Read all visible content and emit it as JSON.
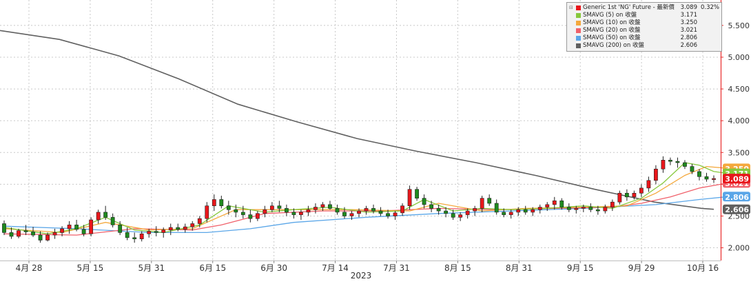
{
  "chart_data": {
    "type": "candlestick",
    "x_tick_labels": [
      "4月 28",
      "5月 15",
      "5月 31",
      "6月 15",
      "6月 30",
      "7月 14",
      "7月 31",
      "8月 15",
      "8月 31",
      "9月 15",
      "9月 29",
      "10月 16"
    ],
    "x_axis_year": "2023",
    "y_ticks": [
      "2.000",
      "2.500",
      "3.000",
      "3.500",
      "4.000",
      "4.500",
      "5.000",
      "5.500"
    ],
    "ylim": [
      1.8,
      5.9
    ],
    "grid": true,
    "legend_position": "top-right",
    "legend": [
      {
        "label": "Generic 1st 'NG' Future - 最新價",
        "value": "3.089",
        "change": "0.32%",
        "color": "#e8161b"
      },
      {
        "label": "SMAVG (5)  on 收盤",
        "value": "3.171",
        "color": "#86c83c"
      },
      {
        "label": "SMAVG (10)  on 收盤",
        "value": "3.250",
        "color": "#f4a83c"
      },
      {
        "label": "SMAVG (20)  on 收盤",
        "value": "3.021",
        "color": "#f0606a"
      },
      {
        "label": "SMAVG (50)  on 收盤",
        "value": "2.806",
        "color": "#5aa6e8"
      },
      {
        "label": "SMAVG (200)  on 收盤",
        "value": "2.606",
        "color": "#606060"
      }
    ],
    "last_value_tags": [
      {
        "text": "3.250",
        "value": 3.25,
        "color": "#f4a83c"
      },
      {
        "text": "3.171",
        "value": 3.171,
        "color": "#86c83c"
      },
      {
        "text": "3.021",
        "value": 3.021,
        "color": "#f0606a"
      },
      {
        "text": "3.089",
        "value": 3.089,
        "color": "#e8161b"
      },
      {
        "text": "2.806",
        "value": 2.806,
        "color": "#5aa6e8"
      },
      {
        "text": "2.606",
        "value": 2.606,
        "color": "#606060"
      }
    ],
    "series": [
      {
        "name": "Generic 1st 'NG' Future",
        "type": "ohlc",
        "color_up": "#e8161b",
        "color_down": "#1e8a1e",
        "values": [
          [
            2.38,
            2.43,
            2.2,
            2.24
          ],
          [
            2.24,
            2.32,
            2.14,
            2.18
          ],
          [
            2.18,
            2.3,
            2.15,
            2.27
          ],
          [
            2.27,
            2.36,
            2.2,
            2.25
          ],
          [
            2.25,
            2.33,
            2.17,
            2.2
          ],
          [
            2.2,
            2.26,
            2.08,
            2.12
          ],
          [
            2.12,
            2.24,
            2.1,
            2.2
          ],
          [
            2.2,
            2.3,
            2.14,
            2.24
          ],
          [
            2.24,
            2.34,
            2.18,
            2.3
          ],
          [
            2.3,
            2.42,
            2.22,
            2.36
          ],
          [
            2.36,
            2.44,
            2.26,
            2.29
          ],
          [
            2.29,
            2.36,
            2.18,
            2.22
          ],
          [
            2.22,
            2.48,
            2.18,
            2.44
          ],
          [
            2.44,
            2.6,
            2.38,
            2.56
          ],
          [
            2.56,
            2.66,
            2.44,
            2.48
          ],
          [
            2.48,
            2.54,
            2.32,
            2.36
          ],
          [
            2.36,
            2.42,
            2.2,
            2.24
          ],
          [
            2.24,
            2.32,
            2.12,
            2.16
          ],
          [
            2.16,
            2.24,
            2.08,
            2.14
          ],
          [
            2.14,
            2.26,
            2.1,
            2.22
          ],
          [
            2.22,
            2.3,
            2.16,
            2.26
          ],
          [
            2.26,
            2.34,
            2.18,
            2.24
          ],
          [
            2.24,
            2.32,
            2.16,
            2.28
          ],
          [
            2.28,
            2.38,
            2.2,
            2.32
          ],
          [
            2.32,
            2.38,
            2.26,
            2.29
          ],
          [
            2.29,
            2.38,
            2.24,
            2.33
          ],
          [
            2.33,
            2.42,
            2.27,
            2.38
          ],
          [
            2.38,
            2.5,
            2.32,
            2.46
          ],
          [
            2.46,
            2.72,
            2.4,
            2.66
          ],
          [
            2.66,
            2.84,
            2.58,
            2.76
          ],
          [
            2.76,
            2.82,
            2.62,
            2.66
          ],
          [
            2.66,
            2.74,
            2.52,
            2.6
          ],
          [
            2.6,
            2.68,
            2.48,
            2.56
          ],
          [
            2.56,
            2.66,
            2.46,
            2.52
          ],
          [
            2.52,
            2.6,
            2.4,
            2.46
          ],
          [
            2.46,
            2.58,
            2.42,
            2.54
          ],
          [
            2.54,
            2.66,
            2.48,
            2.6
          ],
          [
            2.6,
            2.72,
            2.56,
            2.66
          ],
          [
            2.66,
            2.74,
            2.56,
            2.62
          ],
          [
            2.62,
            2.68,
            2.5,
            2.56
          ],
          [
            2.56,
            2.62,
            2.46,
            2.52
          ],
          [
            2.52,
            2.6,
            2.44,
            2.56
          ],
          [
            2.56,
            2.66,
            2.5,
            2.6
          ],
          [
            2.6,
            2.7,
            2.54,
            2.64
          ],
          [
            2.64,
            2.72,
            2.58,
            2.68
          ],
          [
            2.68,
            2.74,
            2.6,
            2.62
          ],
          [
            2.62,
            2.68,
            2.52,
            2.56
          ],
          [
            2.56,
            2.64,
            2.46,
            2.5
          ],
          [
            2.5,
            2.58,
            2.44,
            2.54
          ],
          [
            2.54,
            2.62,
            2.48,
            2.58
          ],
          [
            2.58,
            2.66,
            2.52,
            2.62
          ],
          [
            2.62,
            2.68,
            2.54,
            2.58
          ],
          [
            2.58,
            2.64,
            2.5,
            2.54
          ],
          [
            2.54,
            2.6,
            2.46,
            2.5
          ],
          [
            2.5,
            2.58,
            2.44,
            2.55
          ],
          [
            2.55,
            2.7,
            2.5,
            2.66
          ],
          [
            2.66,
            2.98,
            2.6,
            2.92
          ],
          [
            2.92,
            2.96,
            2.74,
            2.78
          ],
          [
            2.78,
            2.84,
            2.62,
            2.68
          ],
          [
            2.68,
            2.74,
            2.56,
            2.62
          ],
          [
            2.62,
            2.68,
            2.52,
            2.58
          ],
          [
            2.58,
            2.64,
            2.48,
            2.54
          ],
          [
            2.54,
            2.6,
            2.44,
            2.48
          ],
          [
            2.48,
            2.56,
            2.42,
            2.52
          ],
          [
            2.52,
            2.62,
            2.46,
            2.58
          ],
          [
            2.58,
            2.66,
            2.5,
            2.62
          ],
          [
            2.62,
            2.82,
            2.56,
            2.78
          ],
          [
            2.78,
            2.84,
            2.66,
            2.7
          ],
          [
            2.7,
            2.76,
            2.52,
            2.56
          ],
          [
            2.56,
            2.62,
            2.48,
            2.52
          ],
          [
            2.52,
            2.6,
            2.46,
            2.56
          ],
          [
            2.56,
            2.64,
            2.5,
            2.6
          ],
          [
            2.6,
            2.66,
            2.52,
            2.56
          ],
          [
            2.56,
            2.64,
            2.5,
            2.6
          ],
          [
            2.6,
            2.68,
            2.54,
            2.64
          ],
          [
            2.64,
            2.72,
            2.58,
            2.68
          ],
          [
            2.68,
            2.8,
            2.6,
            2.74
          ],
          [
            2.74,
            2.78,
            2.6,
            2.64
          ],
          [
            2.64,
            2.7,
            2.56,
            2.6
          ],
          [
            2.6,
            2.66,
            2.54,
            2.62
          ],
          [
            2.62,
            2.68,
            2.56,
            2.64
          ],
          [
            2.64,
            2.7,
            2.56,
            2.6
          ],
          [
            2.6,
            2.66,
            2.52,
            2.58
          ],
          [
            2.58,
            2.68,
            2.54,
            2.64
          ],
          [
            2.64,
            2.76,
            2.58,
            2.72
          ],
          [
            2.72,
            2.9,
            2.68,
            2.86
          ],
          [
            2.86,
            2.92,
            2.74,
            2.8
          ],
          [
            2.8,
            2.9,
            2.76,
            2.86
          ],
          [
            2.86,
            3.0,
            2.8,
            2.94
          ],
          [
            2.94,
            3.12,
            2.88,
            3.06
          ],
          [
            3.06,
            3.3,
            3.0,
            3.24
          ],
          [
            3.24,
            3.44,
            3.18,
            3.38
          ],
          [
            3.38,
            3.42,
            3.3,
            3.36
          ],
          [
            3.36,
            3.42,
            3.26,
            3.34
          ],
          [
            3.34,
            3.38,
            3.24,
            3.28
          ],
          [
            3.28,
            3.32,
            3.16,
            3.2
          ],
          [
            3.2,
            3.24,
            3.06,
            3.12
          ],
          [
            3.12,
            3.18,
            3.04,
            3.08
          ],
          [
            3.08,
            3.14,
            3.02,
            3.09
          ]
        ]
      },
      {
        "name": "SMAVG (5)",
        "color": "#86c83c",
        "points": [
          [
            0,
            2.32
          ],
          [
            6,
            2.22
          ],
          [
            10,
            2.3
          ],
          [
            14,
            2.48
          ],
          [
            18,
            2.28
          ],
          [
            22,
            2.24
          ],
          [
            27,
            2.36
          ],
          [
            31,
            2.66
          ],
          [
            36,
            2.56
          ],
          [
            40,
            2.6
          ],
          [
            45,
            2.64
          ],
          [
            50,
            2.56
          ],
          [
            55,
            2.58
          ],
          [
            58,
            2.76
          ],
          [
            62,
            2.58
          ],
          [
            66,
            2.62
          ],
          [
            70,
            2.6
          ],
          [
            75,
            2.62
          ],
          [
            80,
            2.66
          ],
          [
            84,
            2.62
          ],
          [
            88,
            2.78
          ],
          [
            91,
            3.02
          ],
          [
            94,
            3.34
          ],
          [
            96,
            3.3
          ],
          [
            98,
            3.2
          ],
          [
            100,
            3.171
          ]
        ]
      },
      {
        "name": "SMAVG (10)",
        "color": "#f4a83c",
        "points": [
          [
            0,
            2.3
          ],
          [
            8,
            2.24
          ],
          [
            14,
            2.4
          ],
          [
            20,
            2.28
          ],
          [
            26,
            2.3
          ],
          [
            32,
            2.6
          ],
          [
            40,
            2.6
          ],
          [
            48,
            2.6
          ],
          [
            56,
            2.58
          ],
          [
            60,
            2.7
          ],
          [
            66,
            2.58
          ],
          [
            72,
            2.62
          ],
          [
            80,
            2.64
          ],
          [
            86,
            2.66
          ],
          [
            90,
            2.86
          ],
          [
            94,
            3.14
          ],
          [
            97,
            3.28
          ],
          [
            100,
            3.25
          ]
        ]
      },
      {
        "name": "SMAVG (20)",
        "color": "#f0606a",
        "points": [
          [
            0,
            2.22
          ],
          [
            10,
            2.2
          ],
          [
            18,
            2.3
          ],
          [
            26,
            2.28
          ],
          [
            30,
            2.36
          ],
          [
            36,
            2.54
          ],
          [
            44,
            2.58
          ],
          [
            52,
            2.58
          ],
          [
            60,
            2.62
          ],
          [
            68,
            2.6
          ],
          [
            76,
            2.62
          ],
          [
            84,
            2.64
          ],
          [
            88,
            2.7
          ],
          [
            92,
            2.8
          ],
          [
            96,
            2.94
          ],
          [
            100,
            3.021
          ]
        ]
      },
      {
        "name": "SMAVG (50)",
        "color": "#5aa6e8",
        "points": [
          [
            0,
            2.34
          ],
          [
            10,
            2.3
          ],
          [
            20,
            2.24
          ],
          [
            28,
            2.24
          ],
          [
            34,
            2.3
          ],
          [
            40,
            2.4
          ],
          [
            50,
            2.48
          ],
          [
            60,
            2.54
          ],
          [
            70,
            2.58
          ],
          [
            80,
            2.62
          ],
          [
            90,
            2.68
          ],
          [
            96,
            2.76
          ],
          [
            100,
            2.806
          ]
        ]
      },
      {
        "name": "SMAVG (200)",
        "color": "#606060",
        "points": [
          [
            0,
            5.42
          ],
          [
            10,
            5.28
          ],
          [
            20,
            5.02
          ],
          [
            30,
            4.66
          ],
          [
            40,
            4.26
          ],
          [
            50,
            3.98
          ],
          [
            60,
            3.72
          ],
          [
            70,
            3.52
          ],
          [
            80,
            3.34
          ],
          [
            90,
            3.14
          ],
          [
            100,
            2.92
          ],
          [
            110,
            2.72
          ],
          [
            118,
            2.62
          ],
          [
            120,
            2.606
          ]
        ]
      }
    ]
  }
}
